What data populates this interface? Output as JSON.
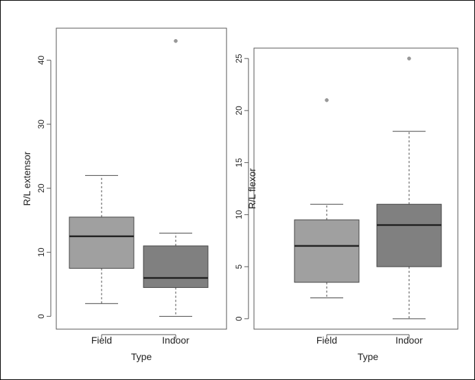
{
  "chart_data": [
    {
      "type": "boxplot",
      "xlabel": "Type",
      "ylabel": "R/L extensor",
      "categories": [
        "Field",
        "Indoor"
      ],
      "ylim": [
        -2,
        45
      ],
      "yticks": [
        0,
        10,
        20,
        30,
        40
      ],
      "boxes": [
        {
          "category": "Field",
          "whisker_low": 2,
          "q1": 7.5,
          "median": 12.5,
          "q3": 15.5,
          "whisker_high": 22,
          "outliers": [],
          "color": "#a0a0a0"
        },
        {
          "category": "Indoor",
          "whisker_low": 0,
          "q1": 4.5,
          "median": 6,
          "q3": 11,
          "whisker_high": 13,
          "outliers": [
            43
          ],
          "color": "#808080"
        }
      ]
    },
    {
      "type": "boxplot",
      "xlabel": "Type",
      "ylabel": "R/L flexor",
      "categories": [
        "Field",
        "Indoor"
      ],
      "ylim": [
        -1,
        26
      ],
      "yticks": [
        0,
        5,
        10,
        15,
        20,
        25
      ],
      "boxes": [
        {
          "category": "Field",
          "whisker_low": 2,
          "q1": 3.5,
          "median": 7,
          "q3": 9.5,
          "whisker_high": 11,
          "outliers": [
            21
          ],
          "color": "#a0a0a0"
        },
        {
          "category": "Indoor",
          "whisker_low": 0,
          "q1": 5,
          "median": 9,
          "q3": 11,
          "whisker_high": 18,
          "outliers": [
            25
          ],
          "color": "#808080"
        }
      ]
    }
  ]
}
